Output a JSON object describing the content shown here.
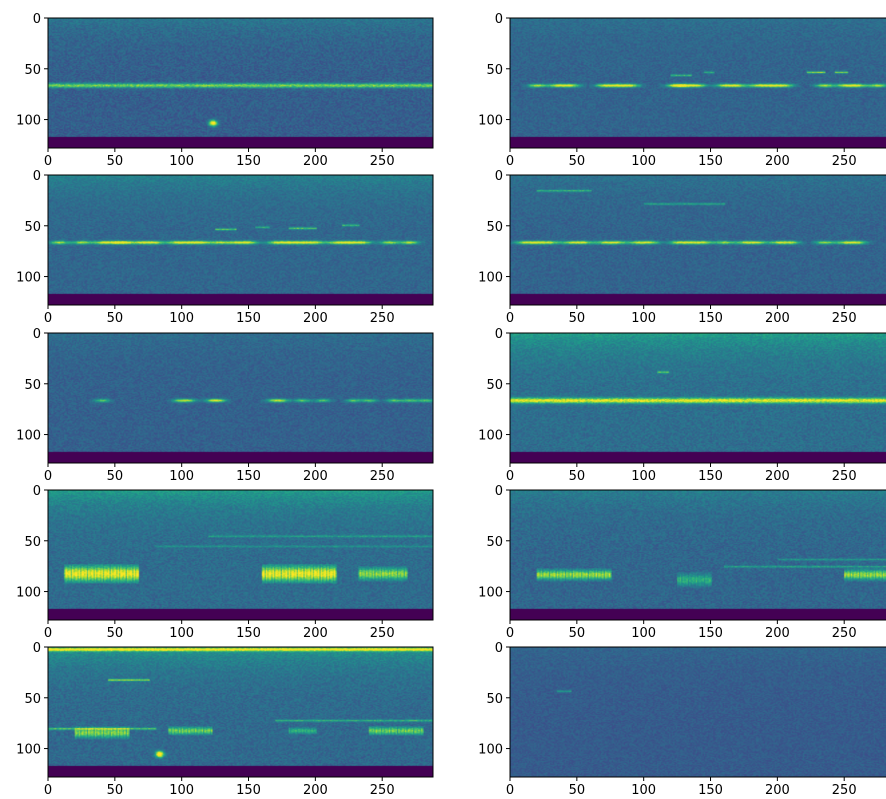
{
  "figure": {
    "rows": 5,
    "cols": 2,
    "colormap": "viridis"
  },
  "chart_data": [
    {
      "type": "heatmap",
      "title": "",
      "xlabel": "",
      "ylabel": "",
      "xlim": [
        0,
        287
      ],
      "ylim": [
        0,
        127
      ],
      "y_inverted": true,
      "xticks": [
        "0",
        "50",
        "100",
        "150",
        "200",
        "250"
      ],
      "yticks": [
        "0",
        "50",
        "100"
      ],
      "grid": false,
      "features": {
        "base_level": 0.3,
        "noise": 0.07,
        "top_energy": 0.1,
        "bottom_band": {
          "y_start": 117,
          "y_end": 127,
          "value": 0.0
        },
        "lines": [
          {
            "y": 66,
            "x_start": 0,
            "x_end": 287,
            "intensity": 0.5,
            "width": 2.2
          }
        ],
        "calls": [],
        "chorus": [],
        "blobs": [
          {
            "x": 123,
            "y": 103,
            "intensity": 0.85,
            "r": 3
          }
        ]
      }
    },
    {
      "type": "heatmap",
      "title": "",
      "xlabel": "",
      "ylabel": "",
      "xlim": [
        0,
        287
      ],
      "ylim": [
        0,
        127
      ],
      "y_inverted": true,
      "xticks": [
        "0",
        "50",
        "100",
        "150",
        "200",
        "250"
      ],
      "yticks": [
        "0",
        "50",
        "100"
      ],
      "grid": false,
      "features": {
        "base_level": 0.32,
        "noise": 0.06,
        "top_energy": 0.05,
        "bottom_band": {
          "y_start": 117,
          "y_end": 127,
          "value": 0.0
        },
        "lines": [
          {
            "y": 56,
            "x_start": 120,
            "x_end": 135,
            "intensity": 0.35,
            "width": 1
          },
          {
            "y": 53,
            "x_start": 145,
            "x_end": 152,
            "intensity": 0.3,
            "width": 1
          },
          {
            "y": 53,
            "x_start": 222,
            "x_end": 235,
            "intensity": 0.5,
            "width": 1
          },
          {
            "y": 53,
            "x_start": 243,
            "x_end": 252,
            "intensity": 0.45,
            "width": 1
          }
        ],
        "calls": [
          {
            "y": 66,
            "xs": [
              20,
              35,
              45,
              70,
              80,
              90,
              123,
              130,
              140,
              160,
              170,
              185,
              195,
              205,
              235,
              250,
              260,
              275
            ],
            "w": 7,
            "intensity": 0.6
          }
        ],
        "chorus": [],
        "blobs": []
      }
    },
    {
      "type": "heatmap",
      "title": "",
      "xlabel": "",
      "ylabel": "",
      "xlim": [
        0,
        287
      ],
      "ylim": [
        0,
        127
      ],
      "y_inverted": true,
      "xticks": [
        "0",
        "50",
        "100",
        "150",
        "200",
        "250"
      ],
      "yticks": [
        "0",
        "50",
        "100"
      ],
      "grid": false,
      "features": {
        "base_level": 0.33,
        "noise": 0.06,
        "top_energy": 0.12,
        "bottom_band": {
          "y_start": 117,
          "y_end": 127,
          "value": 0.0
        },
        "lines": [
          {
            "y": 53,
            "x_start": 125,
            "x_end": 140,
            "intensity": 0.4,
            "width": 1
          },
          {
            "y": 51,
            "x_start": 155,
            "x_end": 165,
            "intensity": 0.3,
            "width": 1
          },
          {
            "y": 52,
            "x_start": 180,
            "x_end": 200,
            "intensity": 0.4,
            "width": 1
          },
          {
            "y": 49,
            "x_start": 220,
            "x_end": 232,
            "intensity": 0.35,
            "width": 1
          }
        ],
        "calls": [
          {
            "y": 66,
            "xs": [
              8,
              25,
              40,
              50,
              58,
              70,
              80,
              95,
              105,
              115,
              128,
              140,
              150,
              170,
              180,
              190,
              200,
              215,
              225,
              235,
              255,
              270
            ],
            "w": 7,
            "intensity": 0.58
          }
        ],
        "chorus": [],
        "blobs": []
      }
    },
    {
      "type": "heatmap",
      "title": "",
      "xlabel": "",
      "ylabel": "",
      "xlim": [
        0,
        287
      ],
      "ylim": [
        0,
        127
      ],
      "y_inverted": true,
      "xticks": [
        "0",
        "50",
        "100",
        "150",
        "200",
        "250"
      ],
      "yticks": [
        "0",
        "50",
        "100"
      ],
      "grid": false,
      "features": {
        "base_level": 0.32,
        "noise": 0.06,
        "top_energy": 0.06,
        "bottom_band": {
          "y_start": 117,
          "y_end": 127,
          "value": 0.0
        },
        "lines": [
          {
            "y": 15,
            "x_start": 20,
            "x_end": 60,
            "intensity": 0.3,
            "width": 1
          },
          {
            "y": 28,
            "x_start": 100,
            "x_end": 160,
            "intensity": 0.25,
            "width": 1
          }
        ],
        "calls": [
          {
            "y": 66,
            "xs": [
              10,
              20,
              30,
              45,
              55,
              70,
              80,
              95,
              105,
              125,
              135,
              145,
              160,
              175,
              185,
              200,
              210,
              235,
              250,
              260
            ],
            "w": 7,
            "intensity": 0.56
          }
        ],
        "chorus": [],
        "blobs": []
      }
    },
    {
      "type": "heatmap",
      "title": "",
      "xlabel": "",
      "ylabel": "",
      "xlim": [
        0,
        287
      ],
      "ylim": [
        0,
        127
      ],
      "y_inverted": true,
      "xticks": [
        "0",
        "50",
        "100",
        "150",
        "200",
        "250"
      ],
      "yticks": [
        "0",
        "50",
        "100"
      ],
      "grid": false,
      "features": {
        "base_level": 0.31,
        "noise": 0.06,
        "top_energy": 0.05,
        "bottom_band": {
          "y_start": 117,
          "y_end": 127,
          "value": 0.0
        },
        "lines": [],
        "calls": [
          {
            "y": 66,
            "xs": [
              40,
              98,
              105,
              122,
              128,
              168,
              175,
              190,
              205,
              228,
              240,
              258,
              270,
              282
            ],
            "w": 6,
            "intensity": 0.45
          }
        ],
        "chorus": [],
        "blobs": []
      }
    },
    {
      "type": "heatmap",
      "title": "",
      "xlabel": "",
      "ylabel": "",
      "xlim": [
        0,
        287
      ],
      "ylim": [
        0,
        127
      ],
      "y_inverted": true,
      "xticks": [
        "0",
        "50",
        "100",
        "150",
        "200",
        "250"
      ],
      "yticks": [
        "0",
        "50",
        "100"
      ],
      "grid": false,
      "features": {
        "base_level": 0.36,
        "noise": 0.07,
        "top_energy": 0.2,
        "bottom_band": {
          "y_start": 117,
          "y_end": 127,
          "value": 0.0
        },
        "lines": [
          {
            "y": 66,
            "x_start": 0,
            "x_end": 287,
            "intensity": 0.62,
            "width": 2.6
          },
          {
            "y": 38,
            "x_start": 110,
            "x_end": 118,
            "intensity": 0.35,
            "width": 1
          }
        ],
        "calls": [],
        "chorus": [],
        "blobs": []
      }
    },
    {
      "type": "heatmap",
      "title": "",
      "xlabel": "",
      "ylabel": "",
      "xlim": [
        0,
        287
      ],
      "ylim": [
        0,
        127
      ],
      "y_inverted": true,
      "xticks": [
        "0",
        "50",
        "100",
        "150",
        "200",
        "250"
      ],
      "yticks": [
        "0",
        "50",
        "100"
      ],
      "grid": false,
      "features": {
        "base_level": 0.35,
        "noise": 0.07,
        "top_energy": 0.2,
        "bottom_band": {
          "y_start": 117,
          "y_end": 127,
          "value": 0.0
        },
        "lines": [
          {
            "y": 45,
            "x_start": 120,
            "x_end": 287,
            "intensity": 0.2,
            "width": 1
          },
          {
            "y": 55,
            "x_start": 80,
            "x_end": 287,
            "intensity": 0.15,
            "width": 1
          }
        ],
        "calls": [],
        "chorus": [
          {
            "x_start": 12,
            "x_end": 67,
            "y_center": 82,
            "height": 16,
            "intensity": 0.75
          },
          {
            "x_start": 160,
            "x_end": 215,
            "y_center": 82,
            "height": 16,
            "intensity": 0.75
          },
          {
            "x_start": 232,
            "x_end": 268,
            "y_center": 82,
            "height": 12,
            "intensity": 0.55
          }
        ],
        "blobs": []
      }
    },
    {
      "type": "heatmap",
      "title": "",
      "xlabel": "",
      "ylabel": "",
      "xlim": [
        0,
        287
      ],
      "ylim": [
        0,
        127
      ],
      "y_inverted": true,
      "xticks": [
        "0",
        "50",
        "100",
        "150",
        "200",
        "250"
      ],
      "yticks": [
        "0",
        "50",
        "100"
      ],
      "grid": false,
      "features": {
        "base_level": 0.33,
        "noise": 0.07,
        "top_energy": 0.1,
        "bottom_band": {
          "y_start": 117,
          "y_end": 127,
          "value": 0.0
        },
        "lines": [
          {
            "y": 75,
            "x_start": 160,
            "x_end": 287,
            "intensity": 0.25,
            "width": 1
          },
          {
            "y": 68,
            "x_start": 200,
            "x_end": 287,
            "intensity": 0.2,
            "width": 1
          }
        ],
        "calls": [],
        "chorus": [
          {
            "x_start": 20,
            "x_end": 75,
            "y_center": 83,
            "height": 10,
            "intensity": 0.6
          },
          {
            "x_start": 250,
            "x_end": 287,
            "y_center": 83,
            "height": 10,
            "intensity": 0.6
          },
          {
            "x_start": 125,
            "x_end": 150,
            "y_center": 88,
            "height": 12,
            "intensity": 0.35
          }
        ],
        "blobs": []
      }
    },
    {
      "type": "heatmap",
      "title": "",
      "xlabel": "",
      "ylabel": "",
      "xlim": [
        0,
        287
      ],
      "ylim": [
        0,
        127
      ],
      "y_inverted": true,
      "xticks": [
        "0",
        "50",
        "100",
        "150",
        "200",
        "250"
      ],
      "yticks": [
        "0",
        "50",
        "100"
      ],
      "grid": false,
      "features": {
        "base_level": 0.34,
        "noise": 0.07,
        "top_energy": 0.2,
        "bottom_band": {
          "y_start": 117,
          "y_end": 127,
          "value": 0.0
        },
        "lines": [
          {
            "y": 2,
            "x_start": 0,
            "x_end": 287,
            "intensity": 0.6,
            "width": 1.5
          },
          {
            "y": 32,
            "x_start": 45,
            "x_end": 75,
            "intensity": 0.45,
            "width": 1
          },
          {
            "y": 80,
            "x_start": 0,
            "x_end": 80,
            "intensity": 0.4,
            "width": 1
          },
          {
            "y": 72,
            "x_start": 170,
            "x_end": 287,
            "intensity": 0.3,
            "width": 1
          }
        ],
        "calls": [],
        "chorus": [
          {
            "x_start": 20,
            "x_end": 60,
            "y_center": 84,
            "height": 10,
            "intensity": 0.55
          },
          {
            "x_start": 90,
            "x_end": 122,
            "y_center": 82,
            "height": 8,
            "intensity": 0.5
          },
          {
            "x_start": 180,
            "x_end": 200,
            "y_center": 82,
            "height": 6,
            "intensity": 0.35
          },
          {
            "x_start": 240,
            "x_end": 280,
            "y_center": 82,
            "height": 8,
            "intensity": 0.5
          }
        ],
        "blobs": [
          {
            "x": 83,
            "y": 105,
            "intensity": 0.9,
            "r": 3
          }
        ]
      }
    },
    {
      "type": "heatmap",
      "title": "",
      "xlabel": "",
      "ylabel": "",
      "xlim": [
        0,
        287
      ],
      "ylim": [
        0,
        127
      ],
      "y_inverted": true,
      "xticks": [
        "0",
        "50",
        "100",
        "150",
        "200",
        "250"
      ],
      "yticks": [
        "0",
        "50",
        "100"
      ],
      "grid": false,
      "features": {
        "base_level": 0.29,
        "noise": 0.05,
        "top_energy": 0.04,
        "bottom_band": {
          "y_start": 0,
          "y_end": 0,
          "value": 0.0
        },
        "lines": [
          {
            "y": 43,
            "x_start": 35,
            "x_end": 45,
            "intensity": 0.25,
            "width": 1
          }
        ],
        "calls": [],
        "chorus": [],
        "blobs": []
      }
    }
  ]
}
